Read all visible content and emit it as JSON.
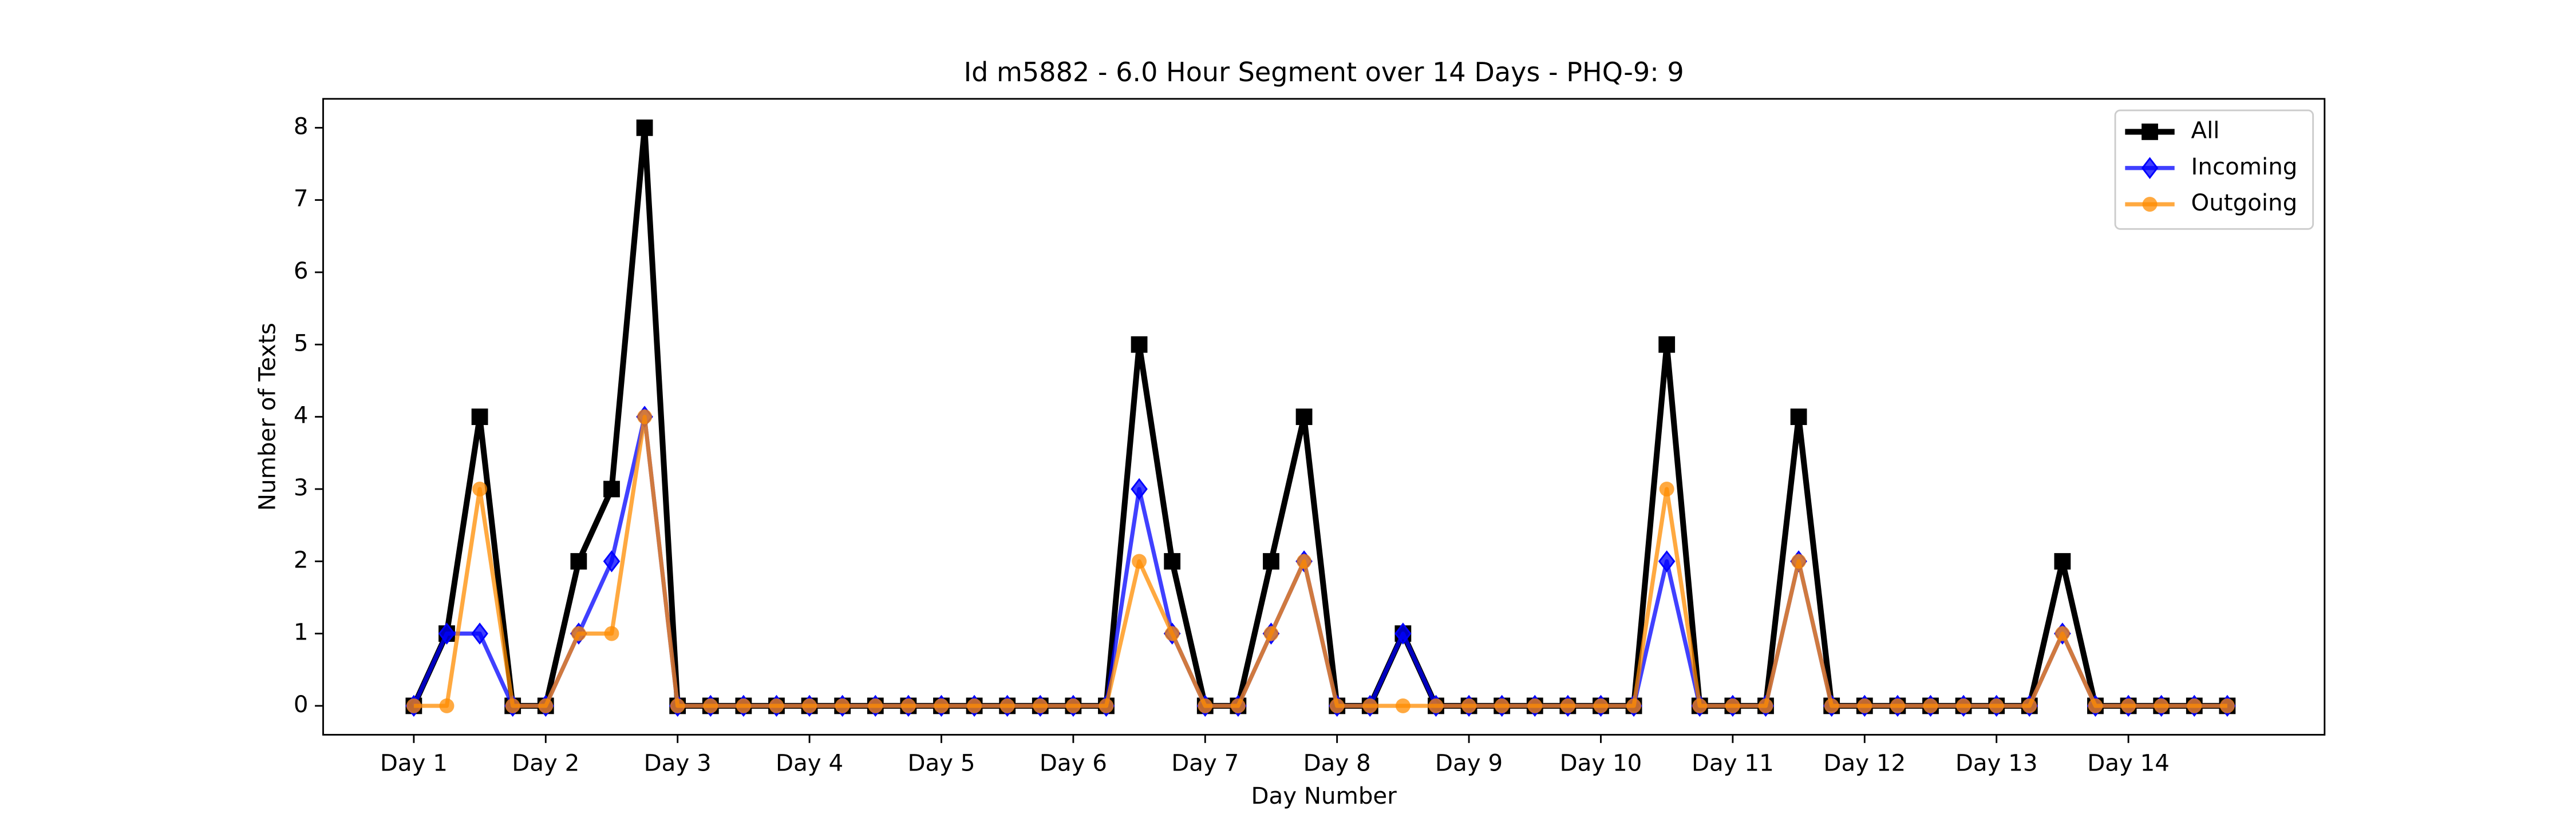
{
  "chart_data": {
    "type": "line",
    "title": "Id m5882 - 6.0 Hour Segment over 14 Days - PHQ-9: 9",
    "x_label": "Day Number",
    "y_label": "Number of Texts",
    "categories": [
      "Day 1",
      null,
      null,
      null,
      "Day 2",
      null,
      null,
      null,
      "Day 3",
      null,
      null,
      null,
      "Day 4",
      null,
      null,
      null,
      "Day 5",
      null,
      null,
      null,
      "Day 6",
      null,
      null,
      null,
      "Day 7",
      null,
      null,
      null,
      "Day 8",
      null,
      null,
      null,
      "Day 9",
      null,
      null,
      null,
      "Day 10",
      null,
      null,
      null,
      "Day 11",
      null,
      null,
      null,
      "Day 12",
      null,
      null,
      null,
      "Day 13",
      null,
      null,
      null,
      "Day 14",
      null,
      null,
      null
    ],
    "series": [
      {
        "name": "All",
        "color": "#000000",
        "marker": "square",
        "values": [
          0,
          1,
          4,
          0,
          0,
          2,
          3,
          8,
          0,
          0,
          0,
          0,
          0,
          0,
          0,
          0,
          0,
          0,
          0,
          0,
          0,
          0,
          5,
          2,
          0,
          0,
          2,
          4,
          0,
          0,
          1,
          0,
          0,
          0,
          0,
          0,
          0,
          0,
          5,
          0,
          0,
          0,
          4,
          0,
          0,
          0,
          0,
          0,
          0,
          0,
          2,
          0,
          0,
          0,
          0,
          0
        ]
      },
      {
        "name": "Incoming",
        "color": "#0000ff",
        "marker": "diamond",
        "values": [
          0,
          1,
          1,
          0,
          0,
          1,
          2,
          4,
          0,
          0,
          0,
          0,
          0,
          0,
          0,
          0,
          0,
          0,
          0,
          0,
          0,
          0,
          3,
          1,
          0,
          0,
          1,
          2,
          0,
          0,
          1,
          0,
          0,
          0,
          0,
          0,
          0,
          0,
          2,
          0,
          0,
          0,
          2,
          0,
          0,
          0,
          0,
          0,
          0,
          0,
          1,
          0,
          0,
          0,
          0,
          0
        ]
      },
      {
        "name": "Outgoing",
        "color": "#ff8c00",
        "marker": "circle",
        "values": [
          0,
          0,
          3,
          0,
          0,
          1,
          1,
          4,
          0,
          0,
          0,
          0,
          0,
          0,
          0,
          0,
          0,
          0,
          0,
          0,
          0,
          0,
          2,
          1,
          0,
          0,
          1,
          2,
          0,
          0,
          0,
          0,
          0,
          0,
          0,
          0,
          0,
          0,
          3,
          0,
          0,
          0,
          2,
          0,
          0,
          0,
          0,
          0,
          0,
          0,
          1,
          0,
          0,
          0,
          0,
          0
        ]
      }
    ],
    "ylim": [
      -0.4,
      8.4
    ],
    "yticks": [
      0,
      1,
      2,
      3,
      4,
      5,
      6,
      7,
      8
    ],
    "grid": false,
    "legend": "upper right"
  }
}
